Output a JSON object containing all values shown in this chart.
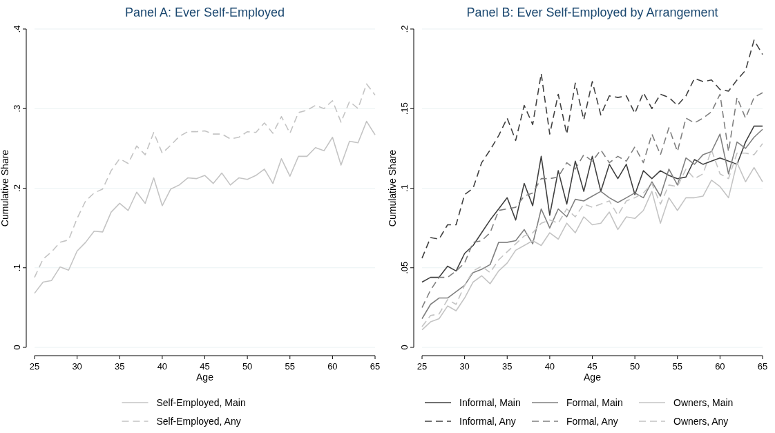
{
  "chart_data": [
    {
      "type": "line",
      "title": "Panel A: Ever Self-Employed",
      "xlabel": "Age",
      "ylabel": "Cumulative Share",
      "grid": "y",
      "legend": "bottom",
      "xlim": [
        25,
        65
      ],
      "xticks": [
        25,
        30,
        35,
        40,
        45,
        50,
        55,
        60,
        65
      ],
      "ylim": [
        0,
        0.4
      ],
      "yticks": [
        {
          "value": 0,
          "label": "0"
        },
        {
          "value": 0.1,
          "label": ".1"
        },
        {
          "value": 0.2,
          "label": ".2"
        },
        {
          "value": 0.3,
          "label": ".3"
        },
        {
          "value": 0.4,
          "label": ".4"
        }
      ],
      "x": [
        25,
        26,
        27,
        28,
        29,
        30,
        31,
        32,
        33,
        34,
        35,
        36,
        37,
        38,
        39,
        40,
        41,
        42,
        43,
        44,
        45,
        46,
        47,
        48,
        49,
        50,
        51,
        52,
        53,
        54,
        55,
        56,
        57,
        58,
        59,
        60,
        61,
        62,
        63,
        64,
        65
      ],
      "series": [
        {
          "name": "Self-Employed, Main",
          "color": "#c4c4c4",
          "line_style": "solid",
          "values": [
            0.068,
            0.082,
            0.084,
            0.101,
            0.097,
            0.121,
            0.132,
            0.146,
            0.145,
            0.17,
            0.181,
            0.172,
            0.195,
            0.181,
            0.213,
            0.178,
            0.199,
            0.204,
            0.213,
            0.212,
            0.216,
            0.206,
            0.219,
            0.204,
            0.213,
            0.211,
            0.216,
            0.224,
            0.206,
            0.237,
            0.215,
            0.24,
            0.24,
            0.251,
            0.247,
            0.264,
            0.229,
            0.259,
            0.257,
            0.284,
            0.267
          ]
        },
        {
          "name": "Self-Employed, Any",
          "color": "#c4c4c4",
          "line_style": "dashed",
          "values": [
            0.088,
            0.111,
            0.12,
            0.132,
            0.135,
            0.162,
            0.184,
            0.194,
            0.199,
            0.222,
            0.237,
            0.231,
            0.253,
            0.242,
            0.27,
            0.244,
            0.254,
            0.265,
            0.271,
            0.271,
            0.272,
            0.268,
            0.268,
            0.262,
            0.264,
            0.271,
            0.27,
            0.282,
            0.269,
            0.29,
            0.269,
            0.295,
            0.298,
            0.304,
            0.3,
            0.31,
            0.283,
            0.309,
            0.3,
            0.331,
            0.317
          ]
        }
      ]
    },
    {
      "type": "line",
      "title": "Panel B: Ever Self-Employed by Arrangement",
      "xlabel": "Age",
      "ylabel": "Cumulative Share",
      "grid": "y",
      "legend": "bottom",
      "xlim": [
        25,
        65
      ],
      "xticks": [
        25,
        30,
        35,
        40,
        45,
        50,
        55,
        60,
        65
      ],
      "ylim": [
        0,
        0.2
      ],
      "yticks": [
        {
          "value": 0,
          "label": "0"
        },
        {
          "value": 0.05,
          "label": ".05"
        },
        {
          "value": 0.1,
          "label": ".1"
        },
        {
          "value": 0.15,
          "label": ".15"
        },
        {
          "value": 0.2,
          "label": ".2"
        }
      ],
      "x": [
        25,
        26,
        27,
        28,
        29,
        30,
        31,
        32,
        33,
        34,
        35,
        36,
        37,
        38,
        39,
        40,
        41,
        42,
        43,
        44,
        45,
        46,
        47,
        48,
        49,
        50,
        51,
        52,
        53,
        54,
        55,
        56,
        57,
        58,
        59,
        60,
        61,
        62,
        63,
        64,
        65
      ],
      "series": [
        {
          "name": "Informal, Main",
          "color": "#404040",
          "line_style": "solid",
          "values": [
            0.041,
            0.044,
            0.044,
            0.051,
            0.048,
            0.059,
            0.064,
            0.072,
            0.08,
            0.087,
            0.094,
            0.08,
            0.103,
            0.089,
            0.12,
            0.083,
            0.111,
            0.09,
            0.117,
            0.098,
            0.12,
            0.098,
            0.115,
            0.106,
            0.115,
            0.096,
            0.111,
            0.106,
            0.111,
            0.108,
            0.106,
            0.107,
            0.118,
            0.115,
            0.117,
            0.119,
            0.117,
            0.115,
            0.129,
            0.139,
            0.139
          ]
        },
        {
          "name": "Formal, Main",
          "color": "#808080",
          "line_style": "solid",
          "values": [
            0.018,
            0.027,
            0.031,
            0.031,
            0.035,
            0.039,
            0.047,
            0.049,
            0.052,
            0.066,
            0.066,
            0.067,
            0.074,
            0.065,
            0.087,
            0.075,
            0.087,
            0.082,
            0.093,
            0.092,
            0.095,
            0.098,
            0.094,
            0.091,
            0.094,
            0.097,
            0.094,
            0.104,
            0.095,
            0.112,
            0.102,
            0.119,
            0.115,
            0.121,
            0.123,
            0.134,
            0.109,
            0.129,
            0.125,
            0.132,
            0.137
          ]
        },
        {
          "name": "Owners, Main",
          "color": "#c4c4c4",
          "line_style": "solid",
          "values": [
            0.011,
            0.016,
            0.018,
            0.026,
            0.023,
            0.031,
            0.041,
            0.045,
            0.04,
            0.048,
            0.053,
            0.061,
            0.064,
            0.067,
            0.064,
            0.072,
            0.068,
            0.078,
            0.072,
            0.082,
            0.077,
            0.078,
            0.085,
            0.074,
            0.082,
            0.081,
            0.086,
            0.098,
            0.078,
            0.094,
            0.086,
            0.094,
            0.094,
            0.095,
            0.105,
            0.101,
            0.094,
            0.116,
            0.104,
            0.113,
            0.104
          ]
        },
        {
          "name": "Informal, Any",
          "color": "#404040",
          "line_style": "dashed",
          "values": [
            0.056,
            0.069,
            0.068,
            0.077,
            0.077,
            0.096,
            0.1,
            0.116,
            0.124,
            0.133,
            0.144,
            0.13,
            0.152,
            0.14,
            0.172,
            0.134,
            0.159,
            0.134,
            0.166,
            0.143,
            0.167,
            0.146,
            0.158,
            0.157,
            0.158,
            0.147,
            0.16,
            0.15,
            0.159,
            0.157,
            0.152,
            0.158,
            0.169,
            0.167,
            0.168,
            0.162,
            0.161,
            0.168,
            0.174,
            0.193,
            0.184
          ]
        },
        {
          "name": "Formal, Any",
          "color": "#808080",
          "line_style": "dashed",
          "values": [
            0.025,
            0.036,
            0.044,
            0.044,
            0.048,
            0.053,
            0.066,
            0.067,
            0.072,
            0.086,
            0.087,
            0.088,
            0.095,
            0.097,
            0.106,
            0.106,
            0.107,
            0.116,
            0.112,
            0.121,
            0.117,
            0.124,
            0.116,
            0.12,
            0.117,
            0.126,
            0.116,
            0.134,
            0.121,
            0.138,
            0.123,
            0.144,
            0.141,
            0.144,
            0.148,
            0.159,
            0.123,
            0.157,
            0.144,
            0.157,
            0.16
          ]
        },
        {
          "name": "Owners, Any",
          "color": "#c4c4c4",
          "line_style": "dashed",
          "values": [
            0.013,
            0.02,
            0.021,
            0.03,
            0.027,
            0.039,
            0.048,
            0.051,
            0.047,
            0.055,
            0.06,
            0.065,
            0.07,
            0.072,
            0.078,
            0.08,
            0.078,
            0.087,
            0.082,
            0.09,
            0.088,
            0.09,
            0.092,
            0.083,
            0.092,
            0.094,
            0.097,
            0.103,
            0.09,
            0.102,
            0.101,
            0.112,
            0.106,
            0.109,
            0.124,
            0.109,
            0.106,
            0.122,
            0.122,
            0.121,
            0.128
          ]
        }
      ]
    }
  ]
}
